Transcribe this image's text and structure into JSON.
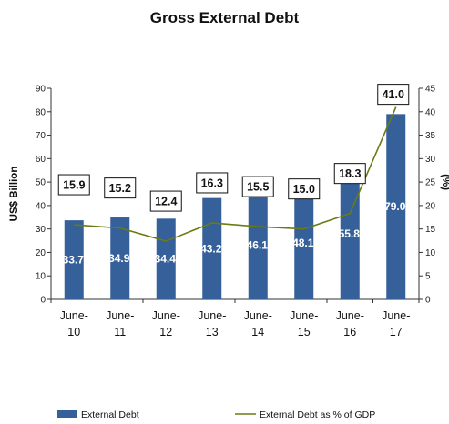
{
  "chart_data": {
    "type": "bar",
    "title": "Gross External Debt",
    "ylabel": "US$ Billion",
    "y2label": "(%)",
    "categories": [
      [
        "June-",
        "10"
      ],
      [
        "June-",
        "11"
      ],
      [
        "June-",
        "12"
      ],
      [
        "June-",
        "13"
      ],
      [
        "June-",
        "14"
      ],
      [
        "June-",
        "15"
      ],
      [
        "June-",
        "16"
      ],
      [
        "June-",
        "17"
      ]
    ],
    "ylim": [
      0,
      90
    ],
    "y2lim": [
      0,
      45
    ],
    "yticks": [
      0,
      10,
      20,
      30,
      40,
      50,
      60,
      70,
      80,
      90
    ],
    "y2ticks": [
      0,
      5,
      10,
      15,
      20,
      25,
      30,
      35,
      40,
      45
    ],
    "series": [
      {
        "name": "External Debt",
        "type": "bar",
        "axis": "left",
        "color": "#35609a",
        "values": [
          33.7,
          34.9,
          34.4,
          43.2,
          46.1,
          48.1,
          55.8,
          79.0
        ],
        "labels": [
          "33.7",
          "34.9",
          "34.4",
          "43.2",
          "46.1",
          "48.1",
          "55.8",
          "79.0"
        ]
      },
      {
        "name": "External Debt as % of GDP",
        "type": "line",
        "axis": "right",
        "color": "#6b7a13",
        "values": [
          15.9,
          15.2,
          12.4,
          16.3,
          15.5,
          15.0,
          18.3,
          41.0
        ],
        "labels": [
          "15.9",
          "15.2",
          "12.4",
          "16.3",
          "15.5",
          "15.0",
          "18.3",
          "41.0"
        ]
      }
    ],
    "legend": "bottom"
  }
}
